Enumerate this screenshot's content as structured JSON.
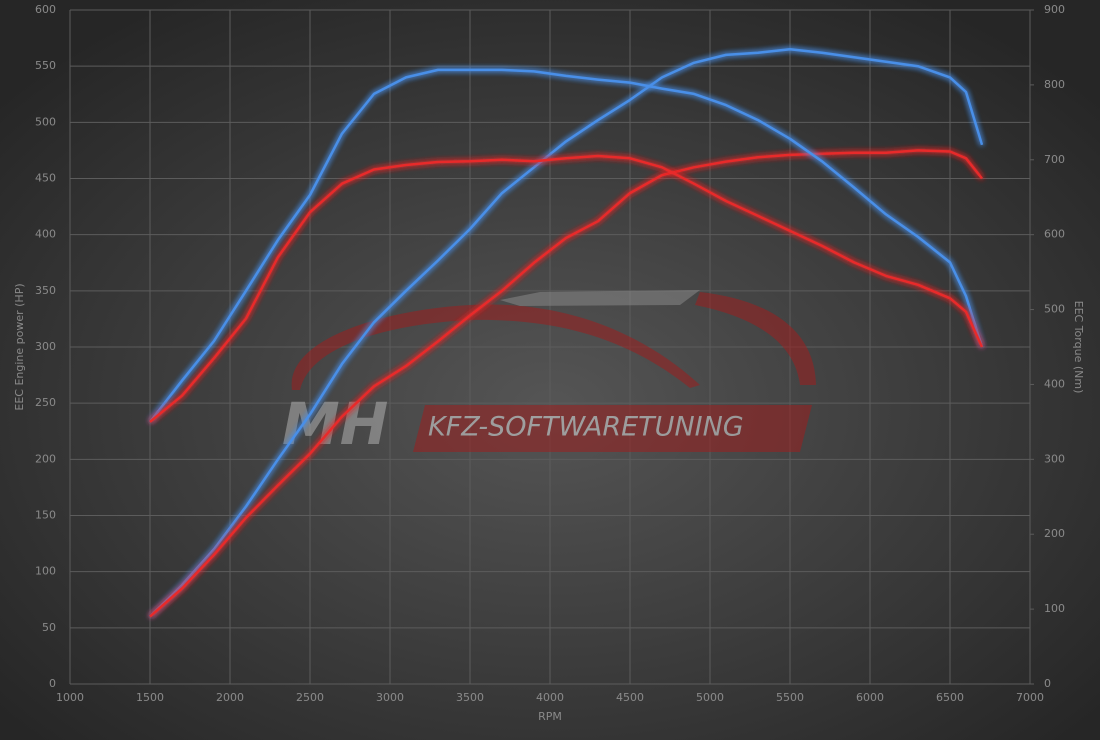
{
  "chart_data": {
    "type": "line",
    "x_label": "RPM",
    "y_label": "EEC Engine power (HP)",
    "y2_label": "EEC Torque (Nm)",
    "x": [
      1500,
      1700,
      1900,
      2100,
      2300,
      2500,
      2700,
      2900,
      3100,
      3300,
      3500,
      3700,
      3900,
      4100,
      4300,
      4500,
      4700,
      4900,
      5100,
      5300,
      5500,
      5700,
      5900,
      6100,
      6300,
      6500,
      6600,
      6700
    ],
    "series": [
      {
        "color": "#4a8fe8",
        "values": [
          60,
          88,
          120,
          158,
          200,
          240,
          285,
          322,
          350,
          377,
          405,
          437,
          460,
          483,
          502,
          520,
          540,
          553,
          560,
          562,
          565,
          562,
          558,
          554,
          550,
          540,
          527,
          480
        ]
      },
      {
        "color": "#e82a2a",
        "values": [
          60,
          85,
          115,
          148,
          177,
          205,
          238,
          265,
          283,
          305,
          328,
          350,
          375,
          397,
          412,
          437,
          453,
          460,
          465,
          469,
          471,
          472,
          473,
          473,
          475,
          474,
          468,
          450
        ]
      },
      {
        "color": "#4a8fe8",
        "axis": "y2",
        "values": [
          350,
          405,
          458,
          525,
          593,
          653,
          735,
          788,
          810,
          820,
          820,
          820,
          818,
          812,
          807,
          803,
          795,
          788,
          773,
          753,
          728,
          698,
          663,
          627,
          597,
          563,
          518,
          450
        ]
      },
      {
        "color": "#e82a2a",
        "axis": "y2",
        "values": [
          350,
          385,
          435,
          488,
          570,
          630,
          668,
          687,
          693,
          697,
          698,
          700,
          698,
          702,
          705,
          702,
          690,
          668,
          645,
          625,
          605,
          585,
          563,
          545,
          533,
          515,
          497,
          450
        ]
      }
    ],
    "xlim": [
      1000,
      7000
    ],
    "xticks": [
      1000,
      1500,
      2000,
      2500,
      3000,
      3500,
      4000,
      4500,
      5000,
      5500,
      6000,
      6500,
      7000
    ],
    "ylim": [
      0,
      600
    ],
    "yticks": [
      0,
      50,
      100,
      150,
      200,
      250,
      300,
      350,
      400,
      450,
      500,
      550,
      600
    ],
    "y2lim": [
      0,
      900
    ],
    "y2ticks": [
      0,
      100,
      200,
      300,
      400,
      500,
      600,
      700,
      800,
      900
    ],
    "grid": true
  },
  "watermark": {
    "brand": "MH",
    "text": "KFZ-SOFTWARETUNING"
  }
}
